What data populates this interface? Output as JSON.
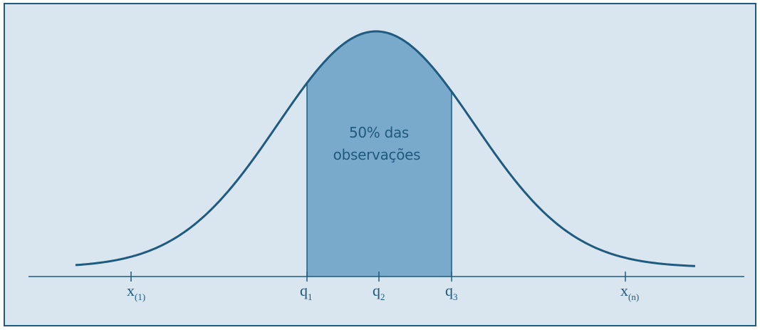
{
  "diagram": {
    "colors": {
      "background": "#d9e6ef",
      "frame": "#1f5b80",
      "curve": "#1f5b80",
      "shade": "#7aaacb",
      "text": "#1e5a7e"
    },
    "shaded_label": {
      "line1": "50% das",
      "line2": "observações"
    },
    "ticks": [
      {
        "base": "x",
        "sub": "(1)"
      },
      {
        "base": "q",
        "sub": "1"
      },
      {
        "base": "q",
        "sub": "2"
      },
      {
        "base": "q",
        "sub": "3"
      },
      {
        "base": "x",
        "sub": "(n)"
      }
    ]
  }
}
